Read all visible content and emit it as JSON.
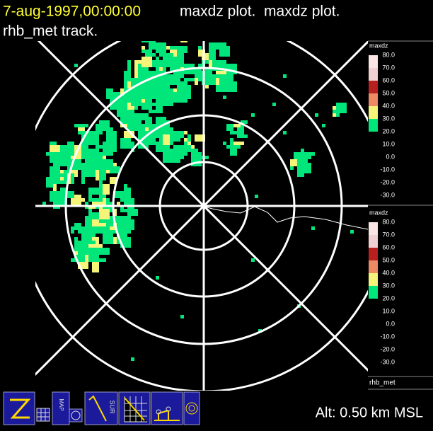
{
  "header": {
    "timestamp": "7-aug-1997,00:00:00",
    "plot_title": "maxdz plot.  maxdz plot.",
    "track": "rhb_met track."
  },
  "legends": [
    {
      "title": "maxdz",
      "labels": [
        "80.0",
        "70.0",
        "60.0",
        "50.0",
        "40.0",
        "30.0",
        "20.0",
        "10.0",
        "0.0",
        "-10.0",
        "-20.0",
        "-30.0"
      ]
    },
    {
      "title": "maxdz",
      "labels": [
        "80.0",
        "70.0",
        "60.0",
        "50.0",
        "40.0",
        "30.0",
        "20.0",
        "10.0",
        "0.0",
        "-10.0",
        "-20.0",
        "-30.0"
      ]
    }
  ],
  "track_panel": {
    "label": "rhb_met"
  },
  "toolbar": {
    "map_label": "MAP",
    "sur_label": "SUR"
  },
  "altitude": "Alt: 0.50 km MSL"
}
